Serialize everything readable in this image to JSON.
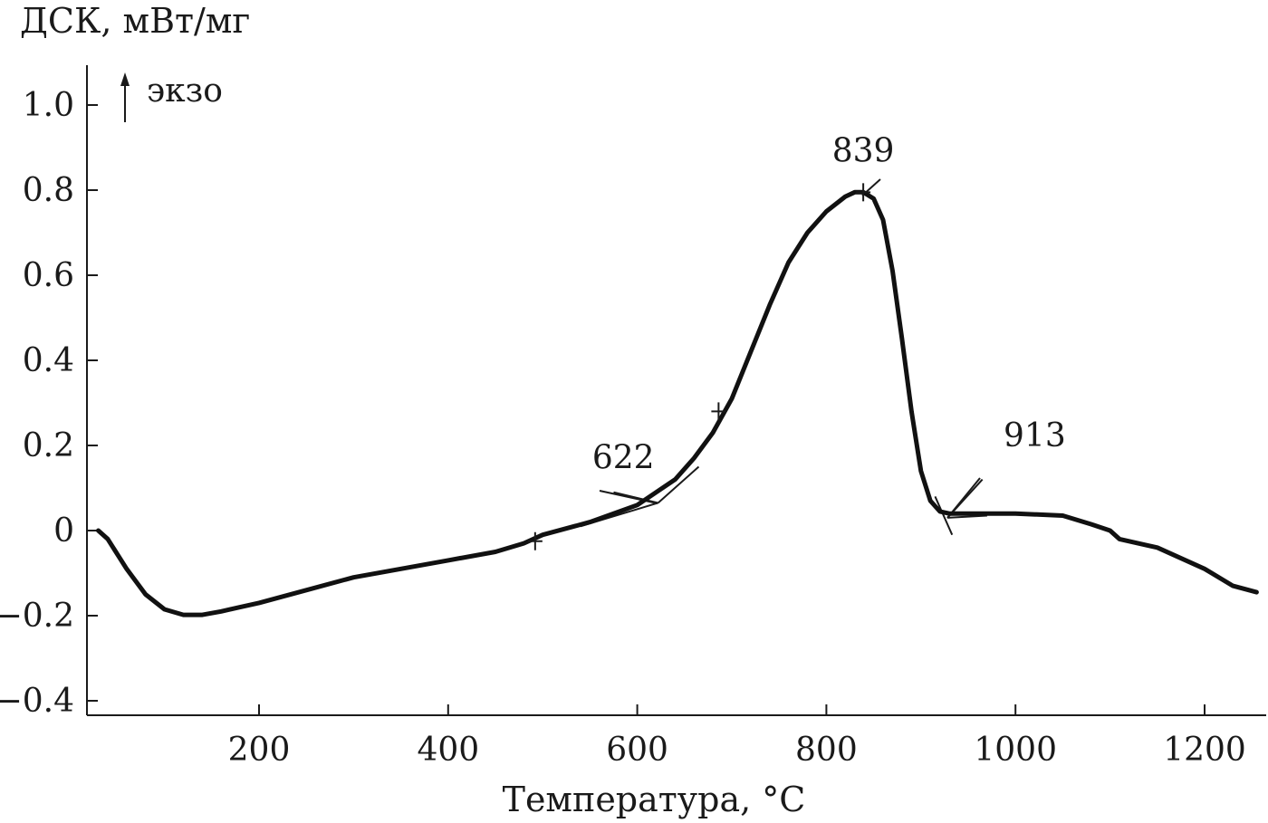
{
  "chart_data": {
    "type": "line",
    "title": "",
    "ylabel": "ДСК, мВт/мг",
    "xlabel": "Температура, °C",
    "exo_label": "экзо",
    "xlim": [
      20,
      1260
    ],
    "ylim": [
      -0.44,
      1.1
    ],
    "x_ticks": [
      200,
      400,
      600,
      800,
      1000,
      1200
    ],
    "x_tick_labels": [
      "200",
      "400",
      "600",
      "800",
      "1000",
      "1200"
    ],
    "y_ticks": [
      1.0,
      0.8,
      0.6,
      0.4,
      0.2,
      0,
      -0.2,
      -0.4
    ],
    "y_tick_labels": [
      "1.0",
      "0.8",
      "0.6",
      "0.4",
      "0.2",
      "0",
      "−0.2",
      "−0.4"
    ],
    "grid": false,
    "series": [
      {
        "name": "",
        "color": "#111111",
        "x": [
          30,
          40,
          60,
          80,
          100,
          120,
          140,
          160,
          180,
          200,
          250,
          300,
          350,
          400,
          450,
          480,
          500,
          550,
          600,
          620,
          640,
          660,
          680,
          700,
          720,
          740,
          760,
          780,
          800,
          820,
          830,
          839,
          850,
          860,
          870,
          880,
          890,
          900,
          910,
          920,
          930,
          950,
          1000,
          1050,
          1080,
          1100,
          1110,
          1150,
          1200,
          1230,
          1255
        ],
        "y": [
          0.0,
          -0.02,
          -0.09,
          -0.15,
          -0.185,
          -0.198,
          -0.198,
          -0.19,
          -0.18,
          -0.17,
          -0.14,
          -0.11,
          -0.09,
          -0.07,
          -0.05,
          -0.03,
          -0.01,
          0.02,
          0.06,
          0.09,
          0.12,
          0.17,
          0.23,
          0.31,
          0.42,
          0.53,
          0.63,
          0.7,
          0.75,
          0.785,
          0.795,
          0.795,
          0.78,
          0.73,
          0.61,
          0.45,
          0.28,
          0.14,
          0.07,
          0.045,
          0.04,
          0.04,
          0.04,
          0.035,
          0.015,
          0.0,
          -0.02,
          -0.04,
          -0.09,
          -0.13,
          -0.145
        ]
      }
    ],
    "markers": [
      {
        "x": 492,
        "y": -0.025
      },
      {
        "x": 686,
        "y": 0.28
      },
      {
        "x": 839,
        "y": 0.795
      }
    ],
    "annotations": [
      {
        "text": "622",
        "x": 622,
        "y": 0.065
      },
      {
        "text": "839",
        "x": 839,
        "y": 0.795
      },
      {
        "text": "913",
        "x": 928,
        "y": 0.04
      }
    ]
  }
}
